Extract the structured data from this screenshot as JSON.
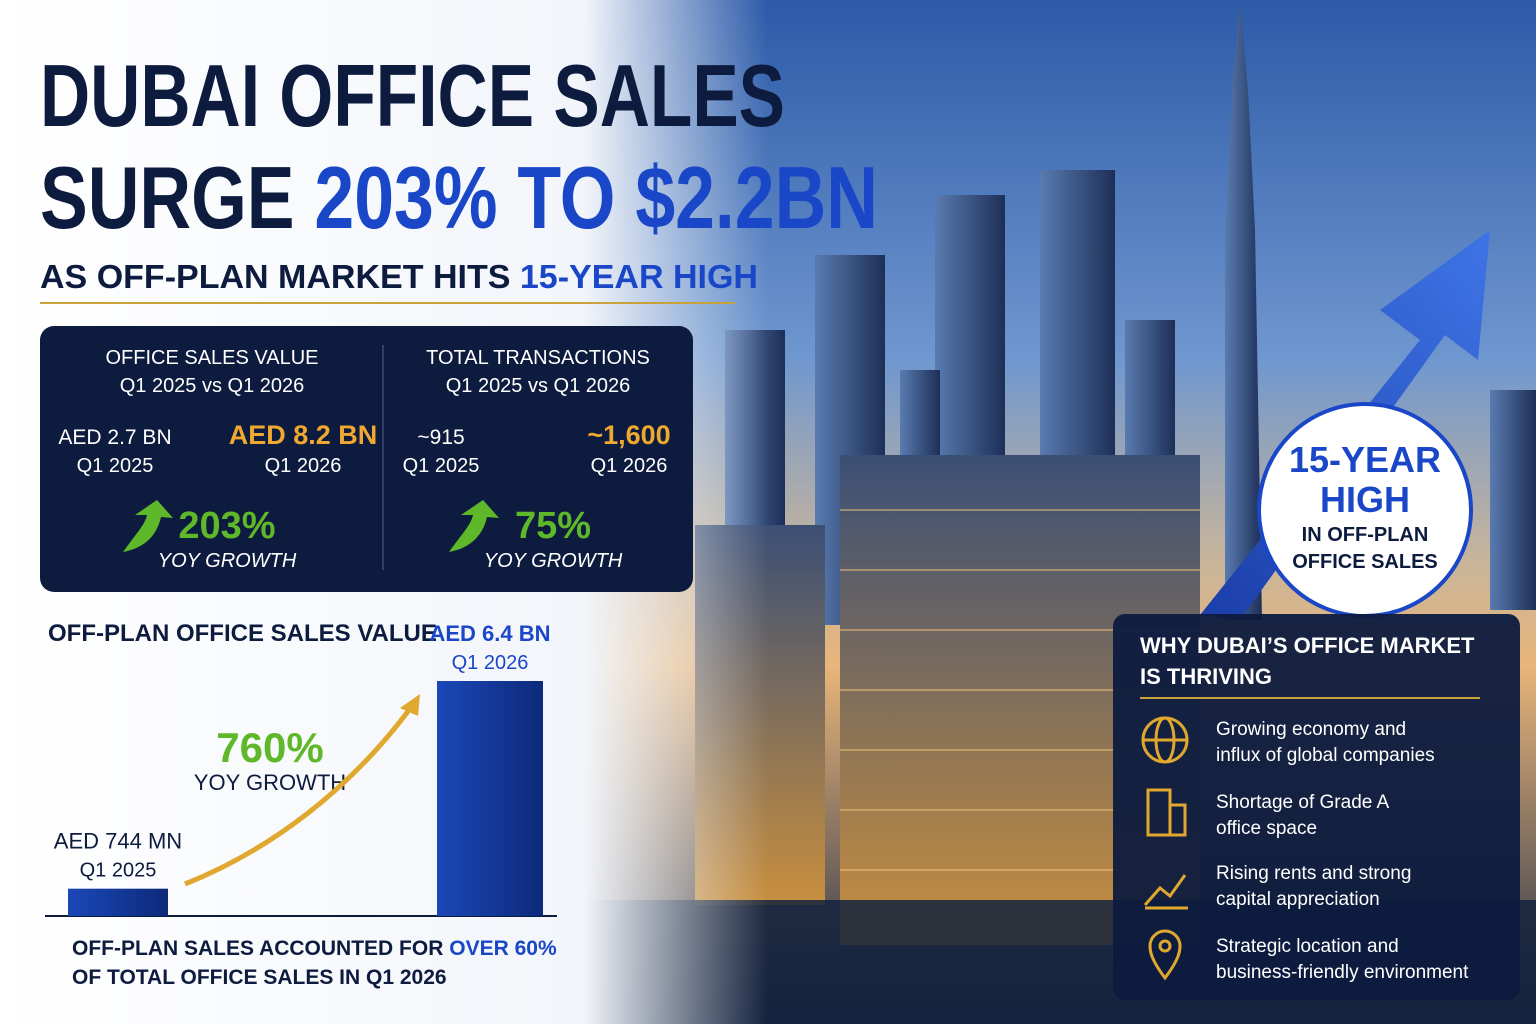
{
  "header": {
    "title_line1": "DUBAI OFFICE SALES",
    "title_line2_start": "SURGE",
    "title_highlight": "203% TO $2.2BN",
    "subtitle_start": "AS OFF-PLAN MARKET HITS",
    "subtitle_highlight": "15-YEAR HIGH"
  },
  "stats": [
    {
      "title": "OFFICE SALES VALUE",
      "subtitle": "Q1 2025 vs Q1 2026",
      "before_value": "AED 2.7 BN",
      "before_period": "Q1 2025",
      "after_value": "AED 8.2 BN",
      "after_period": "Q1 2026",
      "growth": "203%",
      "growth_label": "YOY GROWTH"
    },
    {
      "title": "TOTAL TRANSACTIONS",
      "subtitle": "Q1 2025 vs Q1 2026",
      "before_value": "~915",
      "before_period": "Q1 2025",
      "after_value": "~1,600",
      "after_period": "Q1 2026",
      "growth": "75%",
      "growth_label": "YOY GROWTH"
    }
  ],
  "chart_data": {
    "type": "bar",
    "title": "OFF-PLAN OFFICE SALES VALUE",
    "categories": [
      "Q1 2025",
      "Q1 2026"
    ],
    "values": [
      744,
      6400
    ],
    "value_labels": [
      "AED 744 MN",
      "AED 6.4 BN"
    ],
    "color": "#1a47b8",
    "annotation": "760%",
    "annotation_label": "YOY GROWTH"
  },
  "note": {
    "start": "OFF-PLAN SALES ACCOUNTED FOR",
    "highlight": "OVER 60%",
    "end": "OF TOTAL OFFICE SALES IN Q1 2026"
  },
  "badge": {
    "line1": "15-YEAR",
    "line2": "HIGH",
    "line3": "IN OFF-PLAN",
    "line4": "OFFICE SALES"
  },
  "reasons": {
    "title_line1": "WHY DUBAI’S OFFICE MARKET",
    "title_line2": "IS THRIVING",
    "items": [
      [
        "Growing economy and",
        "influx of global companies"
      ],
      [
        "Shortage of Grade A",
        "office space"
      ],
      [
        "Rising rents and strong",
        "capital appreciation"
      ],
      [
        "Strategic location and",
        "business-friendly environment"
      ]
    ]
  }
}
